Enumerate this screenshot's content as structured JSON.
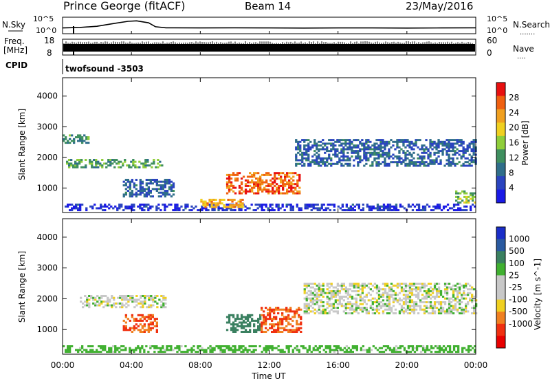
{
  "header": {
    "station": "Prince George (fitACF)",
    "beam": "Beam 14",
    "date": "23/May/2016"
  },
  "nsky_panel": {
    "left_label": "N.Sky",
    "left_ticks": [
      "10^5",
      "10^0"
    ],
    "right_label": "N.Search",
    "right_ticks": [
      "10^5",
      "10^0"
    ]
  },
  "freq_panel": {
    "left_label_1": "Freq.",
    "left_label_2": "[MHz]",
    "left_ticks": [
      "18",
      "8"
    ],
    "right_label": "Nave",
    "right_ticks": [
      "60",
      "0"
    ]
  },
  "cpid_panel": {
    "label": "CPID",
    "program": "twofsound -3503"
  },
  "power_panel": {
    "ylabel": "Slant Range [km]",
    "yticks": [
      "1000",
      "2000",
      "3000",
      "4000"
    ],
    "colorbar_label": "Power [dB]",
    "colorbar_ticks": [
      "4",
      "8",
      "12",
      "16",
      "20",
      "24",
      "28"
    ],
    "colors": [
      "#1a1ae6",
      "#2a44bf",
      "#2f6e8a",
      "#3f8f5f",
      "#8fce3a",
      "#f0d020",
      "#f0a020",
      "#f06010",
      "#e81010"
    ]
  },
  "velocity_panel": {
    "ylabel": "Slant Range [km]",
    "yticks": [
      "1000",
      "2000",
      "3000",
      "4000"
    ],
    "colorbar_label": "Velocity [m s^-1]",
    "colorbar_ticks": [
      "1000",
      "500",
      "100",
      "25",
      "-25",
      "-100",
      "-500",
      "-1000"
    ],
    "colors": [
      "#1a2ec8",
      "#2a5aa0",
      "#3a8060",
      "#40b030",
      "#c8c8c8",
      "#c8c8c8",
      "#f0d020",
      "#f08020",
      "#f03010",
      "#e80000"
    ]
  },
  "x_axis": {
    "label": "Time UT",
    "ticks": [
      "00:00",
      "04:00",
      "08:00",
      "12:00",
      "16:00",
      "20:00",
      "00:00"
    ]
  },
  "chart_data": {
    "type": "heatmap",
    "x_unit": "hours UT",
    "xlim": [
      0,
      24
    ],
    "ylim": [
      200,
      4600
    ],
    "nsky_trace": {
      "x": [
        0,
        1,
        2,
        3,
        3.8,
        4.3,
        5.0,
        5.4,
        6,
        8,
        10,
        12,
        14,
        16,
        18,
        20,
        22,
        24
      ],
      "y": [
        0.35,
        0.38,
        0.45,
        0.62,
        0.75,
        0.78,
        0.66,
        0.42,
        0.36,
        0.35,
        0.36,
        0.35,
        0.34,
        0.35,
        0.35,
        0.34,
        0.35,
        0.36
      ]
    },
    "power_regions": [
      {
        "label": "E-layer near range",
        "t": [
          0,
          24
        ],
        "r": [
          250,
          450
        ],
        "level": 4
      },
      {
        "label": "morning band",
        "t": [
          0.2,
          5.8
        ],
        "r": [
          1650,
          1950
        ],
        "level": 14
      },
      {
        "label": "upper morning band",
        "t": [
          0,
          1.5
        ],
        "r": [
          2450,
          2700
        ],
        "level": 12
      },
      {
        "label": "descending trace",
        "t": [
          3.5,
          6.5
        ],
        "r": [
          700,
          1300
        ],
        "level": 8
      },
      {
        "label": "midday strong echo",
        "t": [
          9.5,
          13.8
        ],
        "r": [
          800,
          1500
        ],
        "level": 28
      },
      {
        "label": "near-range midday",
        "t": [
          8.0,
          10.5
        ],
        "r": [
          350,
          650
        ],
        "level": 24
      },
      {
        "label": "evening bands",
        "t": [
          13.5,
          24
        ],
        "r": [
          1700,
          2600
        ],
        "level": 8
      },
      {
        "label": "late echo",
        "t": [
          22.8,
          24
        ],
        "r": [
          500,
          900
        ],
        "level": 16
      }
    ],
    "velocity_regions": [
      {
        "label": "ground scatter band",
        "t": [
          1.0,
          6.0
        ],
        "r": [
          1700,
          2100
        ],
        "v": 0
      },
      {
        "label": "morning negative",
        "t": [
          3.5,
          5.5
        ],
        "r": [
          900,
          1500
        ],
        "v": -300
      },
      {
        "label": "midday positive",
        "t": [
          9.5,
          11.5
        ],
        "r": [
          900,
          1500
        ],
        "v": 200
      },
      {
        "label": "midday negative",
        "t": [
          11.5,
          13.8
        ],
        "r": [
          900,
          1700
        ],
        "v": -300
      },
      {
        "label": "evening ground scatter",
        "t": [
          14,
          24
        ],
        "r": [
          1500,
          2500
        ],
        "v": 0
      },
      {
        "label": "near range low velocity",
        "t": [
          0,
          24
        ],
        "r": [
          250,
          450
        ],
        "v": 60
      }
    ]
  }
}
